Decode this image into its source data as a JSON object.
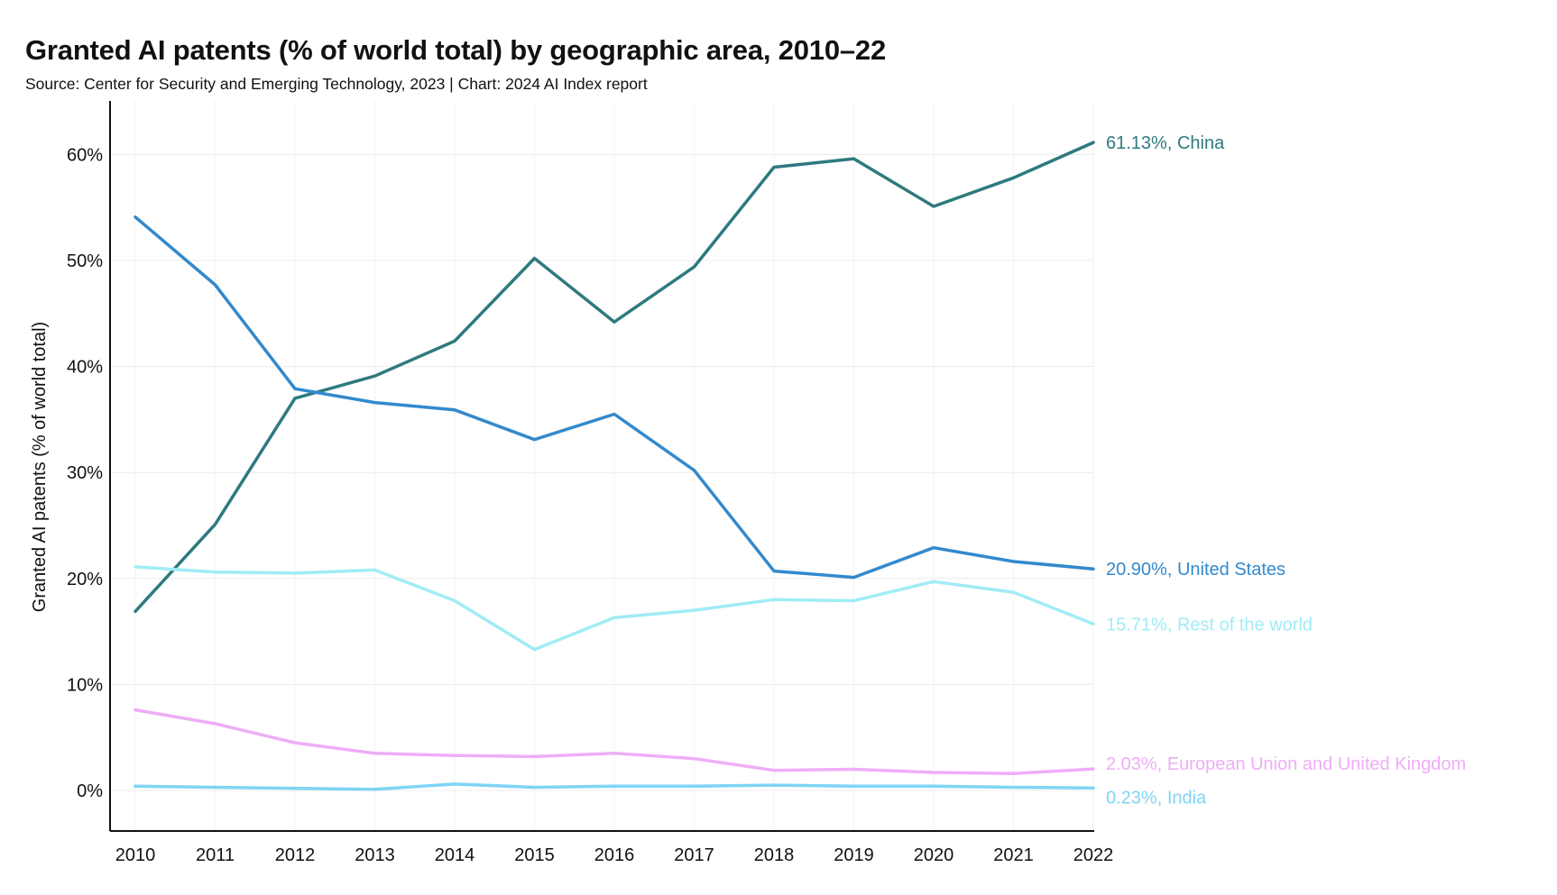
{
  "title": "Granted AI patents (% of world total) by geographic area, 2010–22",
  "subtitle": "Source: Center for Security and Emerging Technology, 2023 | Chart: 2024 AI Index report",
  "chart_data": {
    "type": "line",
    "title": "Granted AI patents (% of world total) by geographic area, 2010–22",
    "subtitle": "Source: Center for Security and Emerging Technology, 2023 | Chart: 2024 AI Index report",
    "xlabel": "",
    "ylabel": "Granted AI patents (% of world total)",
    "x": [
      2010,
      2011,
      2012,
      2013,
      2014,
      2015,
      2016,
      2017,
      2018,
      2019,
      2020,
      2021,
      2022
    ],
    "ylim": [
      -4,
      65
    ],
    "yticks": [
      0,
      10,
      20,
      30,
      40,
      50,
      60
    ],
    "ytick_labels": [
      "0%",
      "10%",
      "20%",
      "30%",
      "40%",
      "50%",
      "60%"
    ],
    "grid": true,
    "legend": "direct labels at right end of lines",
    "series": [
      {
        "name": "China",
        "end_label": "61.13%, China",
        "color": "#2e7a7e",
        "values": [
          16.9,
          25.1,
          37.0,
          39.1,
          42.4,
          50.2,
          44.2,
          49.4,
          58.8,
          59.6,
          55.1,
          57.8,
          61.13
        ]
      },
      {
        "name": "United States",
        "end_label": "20.90%, United States",
        "color": "#3389cc",
        "values": [
          54.1,
          47.7,
          37.9,
          36.6,
          35.9,
          33.1,
          35.5,
          30.2,
          20.7,
          20.1,
          22.9,
          21.6,
          20.9
        ]
      },
      {
        "name": "Rest of the world",
        "end_label": "15.71%, Rest of the world",
        "color": "#a0ecf5",
        "values": [
          21.1,
          20.6,
          20.5,
          20.8,
          17.9,
          13.3,
          16.3,
          17.0,
          18.0,
          17.9,
          19.7,
          18.7,
          15.71
        ]
      },
      {
        "name": "European Union and United Kingdom",
        "end_label": "2.03%, European Union and United Kingdom",
        "color": "#eeadf7",
        "values": [
          7.6,
          6.3,
          4.5,
          3.5,
          3.3,
          3.2,
          3.5,
          3.0,
          1.9,
          2.0,
          1.7,
          1.6,
          2.03
        ]
      },
      {
        "name": "India",
        "end_label": "0.23%, India",
        "color": "#7fd4f5",
        "values": [
          0.4,
          0.3,
          0.2,
          0.1,
          0.6,
          0.3,
          0.4,
          0.4,
          0.5,
          0.4,
          0.4,
          0.3,
          0.23
        ]
      }
    ]
  }
}
